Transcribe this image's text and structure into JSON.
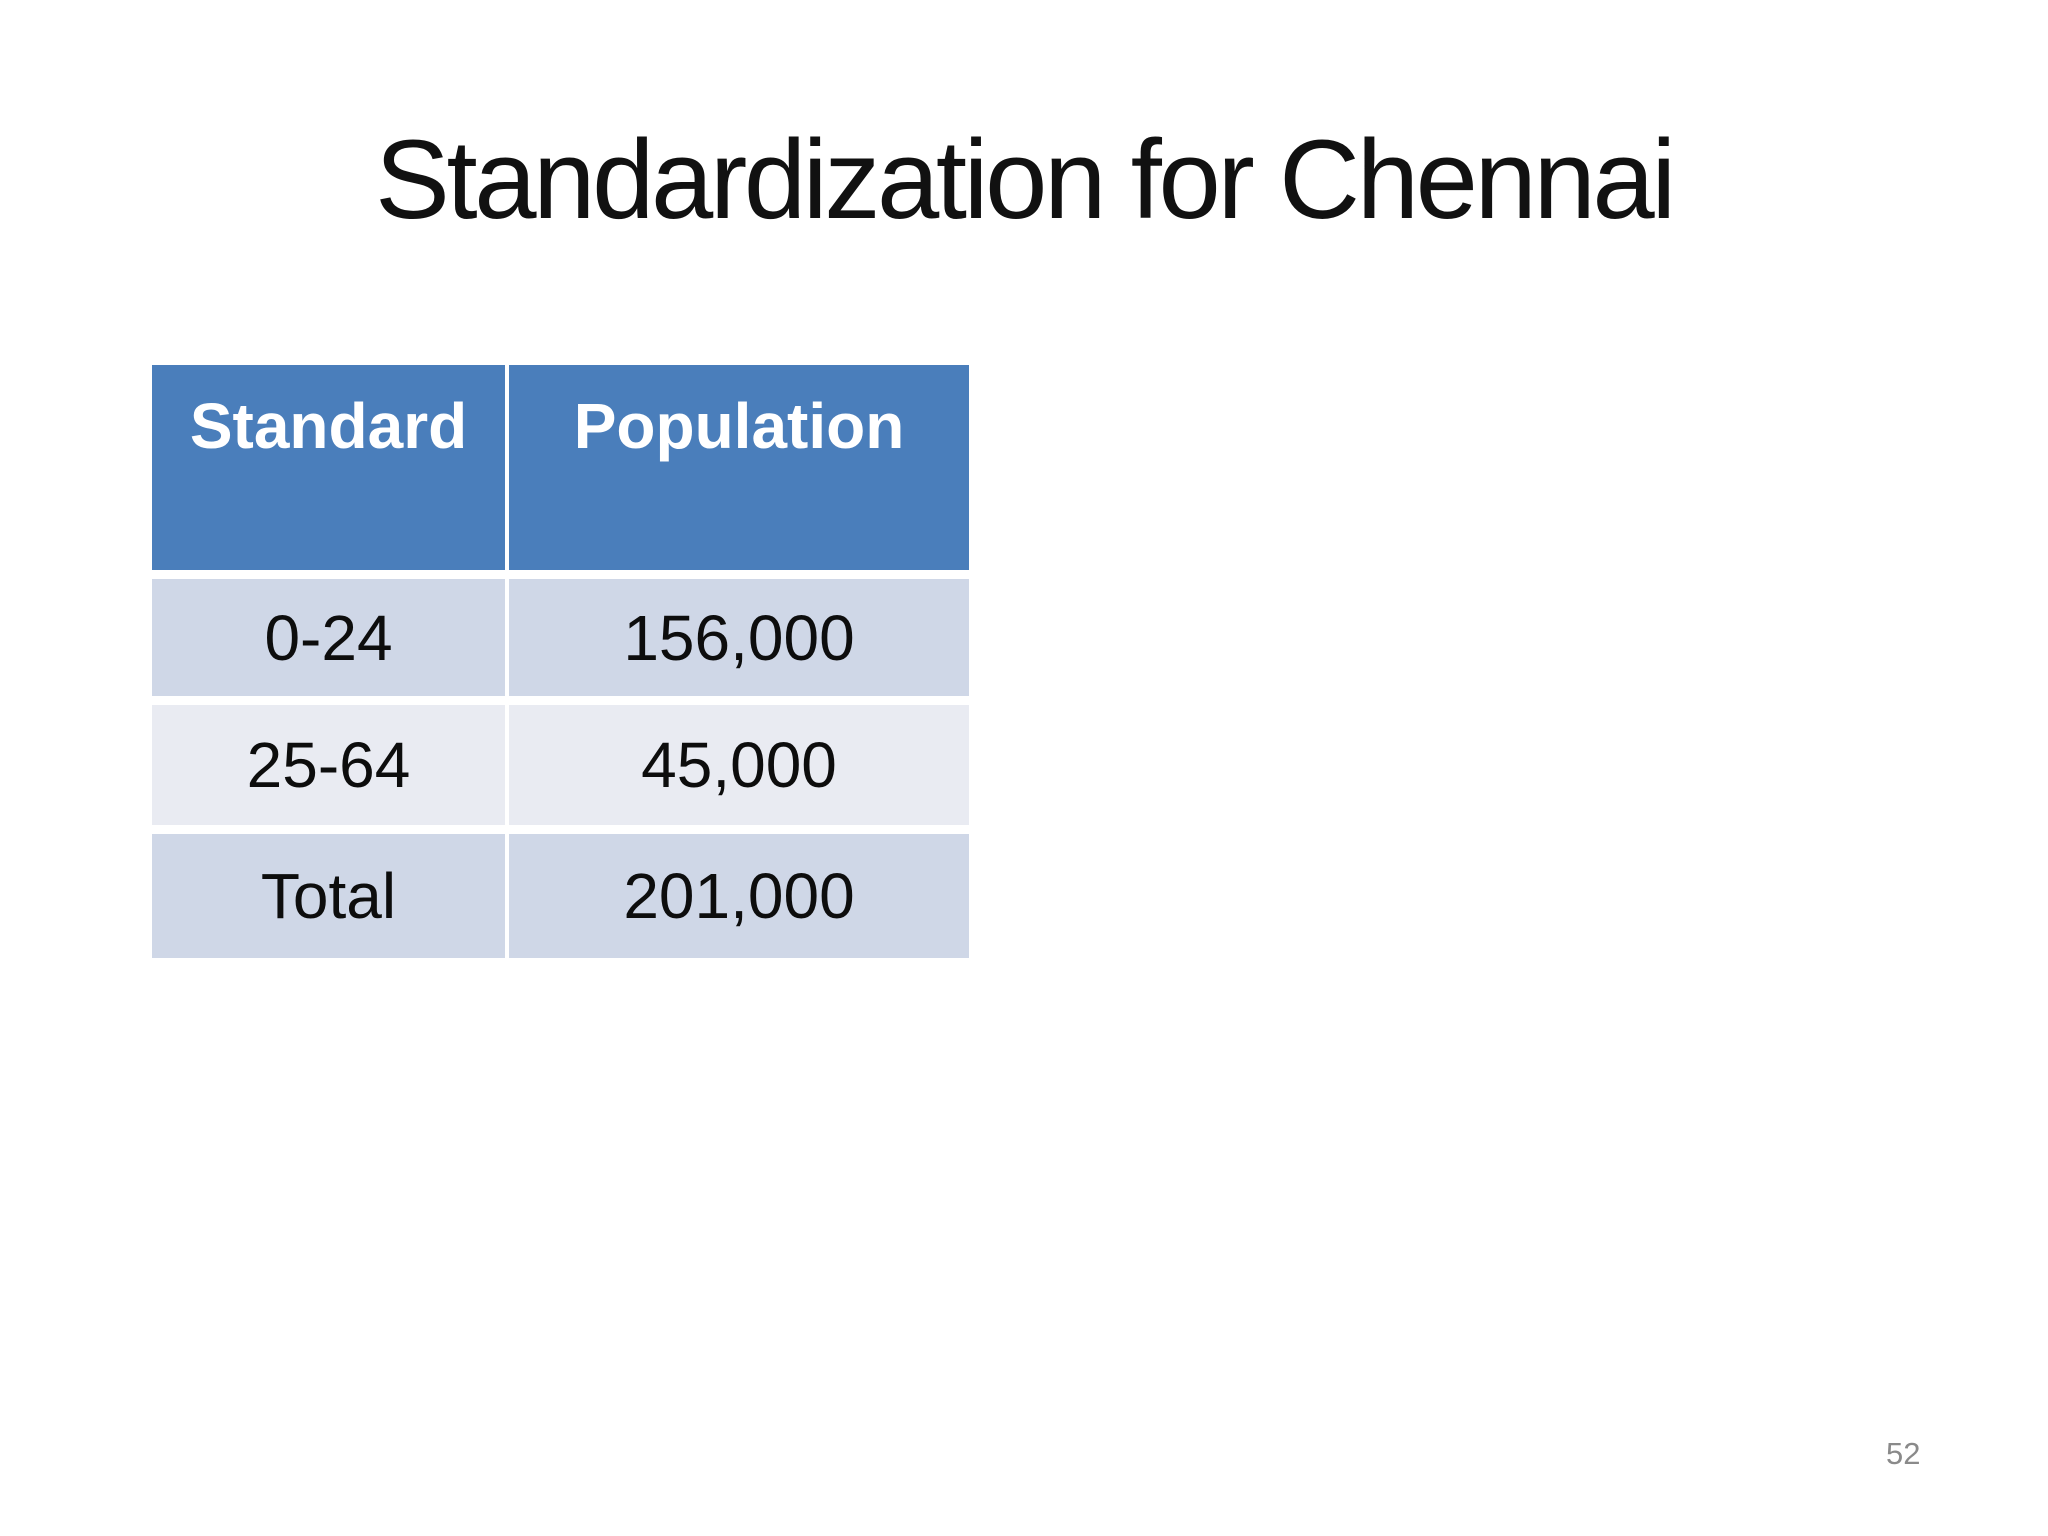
{
  "slide": {
    "title": "Standardization for Chennai",
    "page_number": "52"
  },
  "table": {
    "columns": [
      "Standard",
      "Population"
    ],
    "rows": [
      {
        "standard": "0-24",
        "population": "156,000"
      },
      {
        "standard": "25-64",
        "population": "45,000"
      },
      {
        "standard": "Total",
        "population": "201,000"
      }
    ]
  },
  "colors": {
    "header_bg": "#4a7ebb",
    "header_text": "#ffffff",
    "row_odd_bg": "#cfd7e7",
    "row_even_bg": "#e9ebf2",
    "body_text": "#0d0d0d",
    "page_number_text": "#8a8a8a",
    "background": "#ffffff"
  }
}
